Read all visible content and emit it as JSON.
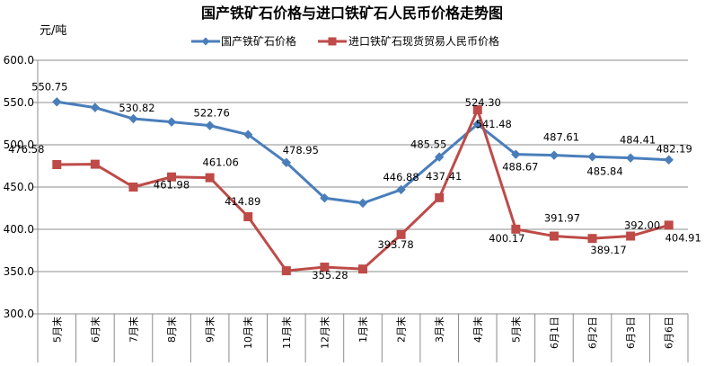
{
  "chart_data": {
    "type": "line",
    "title": "国产铁矿石价格与进口铁矿石人民币价格走势图",
    "unit_label": "元/吨",
    "categories": [
      "5月末",
      "6月末",
      "7月末",
      "8月末",
      "9月末",
      "10月末",
      "11月末",
      "12月末",
      "1月末",
      "2月末",
      "3月末",
      "4月末",
      "5月末",
      "6月1日",
      "6月2日",
      "6月3日",
      "6月6日"
    ],
    "ylim": [
      300,
      600
    ],
    "yticks": [
      "300.0",
      "350.0",
      "400.0",
      "450.0",
      "500.0",
      "550.0",
      "600.0"
    ],
    "grid": true,
    "legend_position": "top",
    "series": [
      {
        "name": "国产铁矿石价格",
        "color": "#4a7ebb",
        "marker": "diamond",
        "values": [
          550.75,
          544,
          530.82,
          527,
          522.76,
          512,
          478.95,
          437,
          431,
          446.88,
          485.55,
          524.3,
          488.67,
          487.61,
          485.84,
          484.41,
          482.19
        ],
        "labels": [
          "550.75",
          "",
          "530.82",
          "",
          "522.76",
          "",
          "478.95",
          "",
          "",
          "446.88",
          "485.55",
          "524.30",
          "488.67",
          "487.61",
          "485.84",
          "484.41",
          "482.19"
        ]
      },
      {
        "name": "进口铁矿石现货贸易人民币价格",
        "color": "#be4b48",
        "marker": "square",
        "values": [
          476.58,
          477,
          450,
          461.98,
          461.06,
          414.89,
          351,
          355.28,
          353,
          393.78,
          437.41,
          541.48,
          400.17,
          391.97,
          389.17,
          392.0,
          404.91
        ],
        "labels": [
          "476.58",
          "",
          "",
          "461.98",
          "461.06",
          "414.89",
          "",
          "355.28",
          "",
          "393.78",
          "437.41",
          "541.48",
          "400.17",
          "391.97",
          "389.17",
          "392.00",
          "404.91"
        ]
      }
    ]
  }
}
